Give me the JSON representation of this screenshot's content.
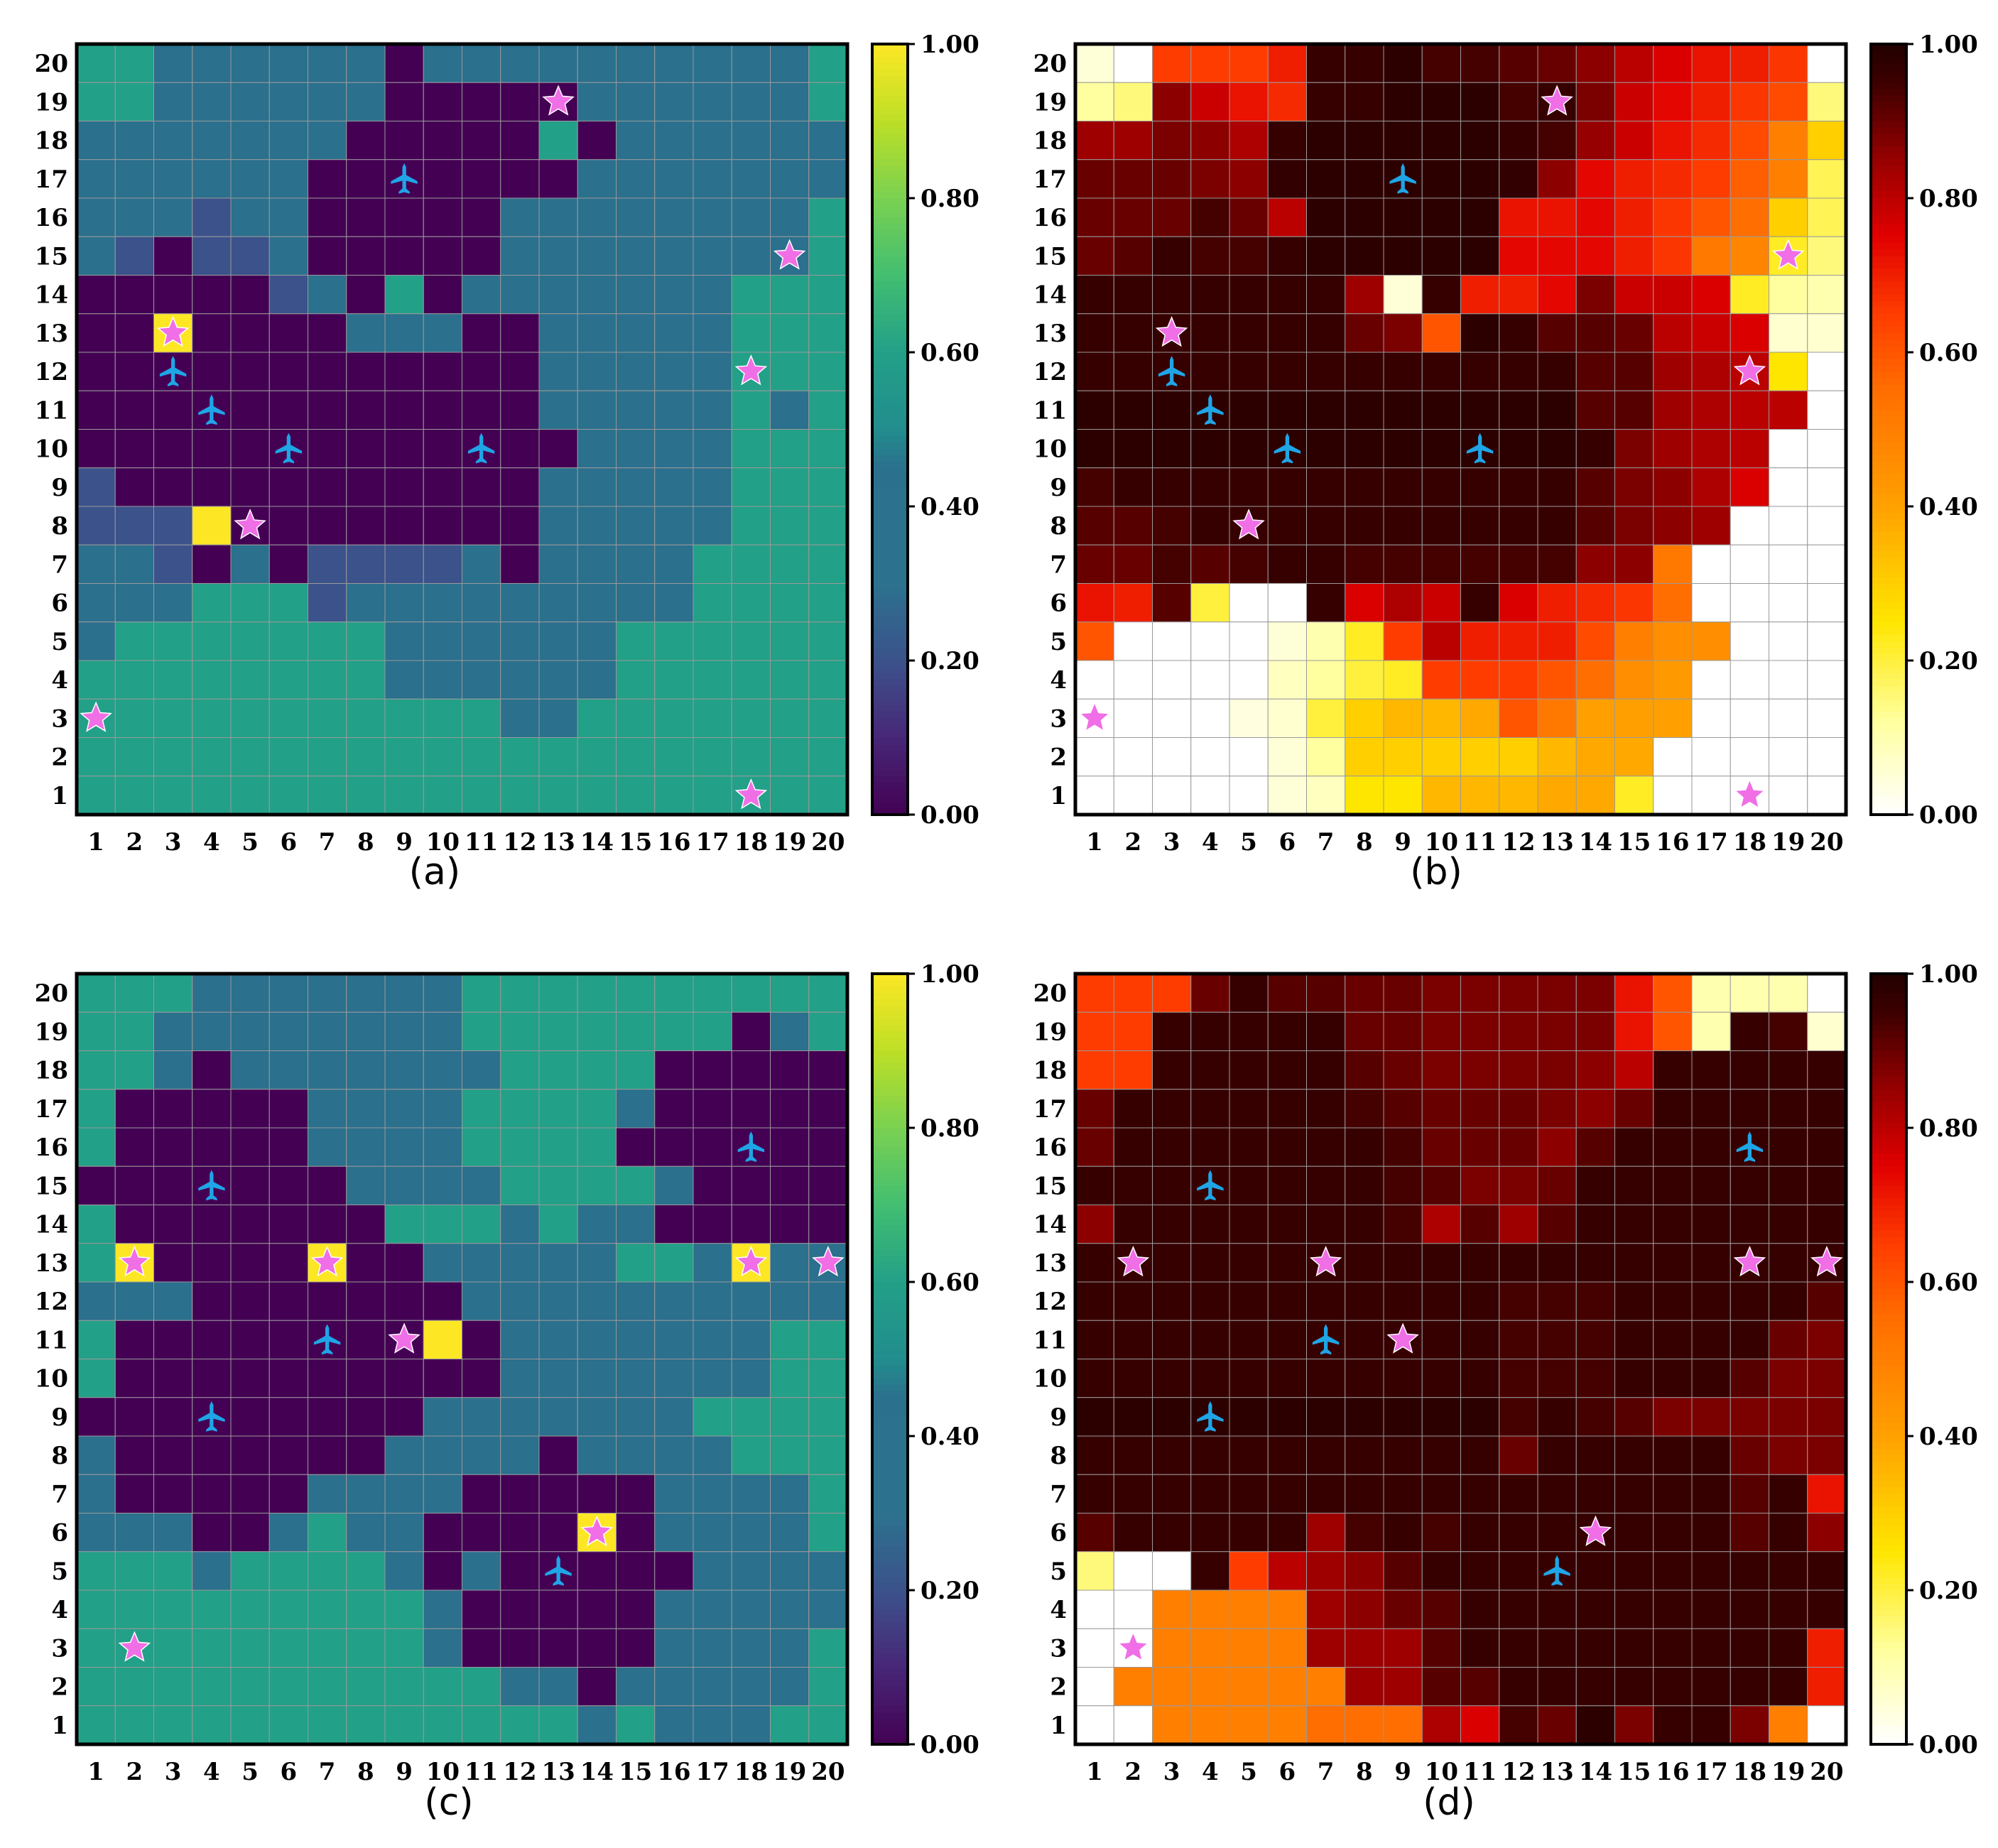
{
  "figure": {
    "colorbar_ticks": [
      "0.00",
      "0.20",
      "0.40",
      "0.60",
      "0.80",
      "1.00"
    ],
    "axis_ticks": [
      "1",
      "2",
      "3",
      "4",
      "5",
      "6",
      "7",
      "8",
      "9",
      "10",
      "11",
      "12",
      "13",
      "14",
      "15",
      "16",
      "17",
      "18",
      "19",
      "20"
    ],
    "colors": {
      "star": "#f06ee6",
      "drone": "#1fa5e6",
      "grid_line": "#9a9a9a"
    }
  },
  "chart_data": [
    {
      "panel": "a",
      "caption": "(a)",
      "type": "heatmap",
      "colormap": "viridis",
      "clim": [
        0,
        1
      ],
      "rows_top_to_bottom_y20_to_y1": [
        "66555555055555555556",
        "66555555000005555556",
        "55555550000060555555",
        "55555500000005555555",
        "55525500000555555556",
        "52022500000555555556",
        "00000250605555555666",
        "00Y00005550055555666",
        "00000000000055555666",
        "00000000000055555656",
        "00000000000005555666",
        "20000000000055555666",
        "222Y0000000055555666",
        "55205022225055556666",
        "55566625555555556666",
        "56666666555555666666",
        "66666666555555666666",
        "66666666666556666666",
        "66666666666666666666",
        "66666666666666666666"
      ],
      "legend_codes": {
        "0": 0.0,
        "2": 0.2,
        "5": 0.45,
        "6": 0.6,
        "Y": 1.0
      },
      "stars": [
        [
          13,
          19
        ],
        [
          19,
          15
        ],
        [
          3,
          13
        ],
        [
          18,
          12
        ],
        [
          5,
          8
        ],
        [
          1,
          3
        ],
        [
          18,
          1
        ]
      ],
      "drones": [
        [
          9,
          17
        ],
        [
          3,
          12
        ],
        [
          4,
          11
        ],
        [
          6,
          10
        ],
        [
          11,
          10
        ]
      ]
    },
    {
      "panel": "b",
      "caption": "(b)",
      "type": "heatmap",
      "colormap": "hot_r",
      "clim": [
        0,
        1
      ],
      "rows_top_to_bottom_y20_to_y1": [
        [
          0.05,
          0,
          0.65,
          0.65,
          0.65,
          0.7,
          0.96,
          0.96,
          0.98,
          0.94,
          0.94,
          0.92,
          0.9,
          0.86,
          0.8,
          0.76,
          0.72,
          0.7,
          0.66,
          0
        ],
        [
          0.12,
          0.15,
          0.86,
          0.78,
          0.72,
          0.68,
          0.96,
          0.96,
          0.98,
          0.98,
          0.98,
          0.94,
          0.96,
          0.88,
          0.78,
          0.74,
          0.7,
          0.66,
          0.62,
          0.15
        ],
        [
          0.84,
          0.84,
          0.88,
          0.86,
          0.82,
          0.96,
          0.98,
          0.98,
          0.98,
          0.98,
          0.98,
          0.96,
          0.94,
          0.85,
          0.78,
          0.72,
          0.68,
          0.62,
          0.5,
          0.3
        ],
        [
          0.9,
          0.9,
          0.9,
          0.88,
          0.86,
          0.97,
          0.98,
          0.98,
          0.98,
          0.98,
          0.98,
          0.97,
          0.86,
          0.74,
          0.7,
          0.68,
          0.65,
          0.58,
          0.5,
          0.18
        ],
        [
          0.9,
          0.9,
          0.9,
          0.94,
          0.9,
          0.8,
          0.98,
          0.98,
          0.98,
          0.98,
          0.98,
          0.72,
          0.72,
          0.74,
          0.7,
          0.66,
          0.6,
          0.55,
          0.3,
          0.18
        ],
        [
          0.9,
          0.92,
          0.96,
          0.94,
          0.94,
          0.96,
          0.98,
          0.98,
          0.98,
          0.98,
          0.98,
          0.74,
          0.74,
          0.74,
          0.7,
          0.66,
          0.52,
          0.48,
          0.22,
          0.15
        ],
        [
          0.96,
          0.96,
          0.96,
          0.96,
          0.96,
          0.96,
          0.96,
          0.84,
          0.05,
          0.96,
          0.7,
          0.7,
          0.74,
          0.88,
          0.78,
          0.78,
          0.76,
          0.22,
          0.12,
          0.1
        ],
        [
          0.96,
          0.96,
          0.96,
          0.96,
          0.96,
          0.96,
          0.96,
          0.9,
          0.88,
          0.6,
          0.98,
          0.96,
          0.92,
          0.92,
          0.9,
          0.8,
          0.78,
          0.76,
          0.06,
          0.06
        ],
        [
          0.96,
          0.96,
          0.96,
          0.96,
          0.96,
          0.96,
          0.96,
          0.96,
          0.96,
          0.96,
          0.96,
          0.96,
          0.96,
          0.92,
          0.92,
          0.84,
          0.82,
          0.8,
          0.25,
          0
        ],
        [
          0.98,
          0.98,
          0.98,
          0.98,
          0.98,
          0.98,
          0.98,
          0.98,
          0.98,
          0.98,
          0.98,
          0.98,
          0.98,
          0.92,
          0.92,
          0.84,
          0.82,
          0.8,
          0.8,
          0
        ],
        [
          0.98,
          0.98,
          0.98,
          0.98,
          0.98,
          0.98,
          0.98,
          0.98,
          0.98,
          0.98,
          0.98,
          0.98,
          0.98,
          0.96,
          0.88,
          0.84,
          0.82,
          0.8,
          0,
          0
        ],
        [
          0.94,
          0.96,
          0.96,
          0.96,
          0.96,
          0.96,
          0.96,
          0.96,
          0.96,
          0.96,
          0.96,
          0.96,
          0.96,
          0.92,
          0.88,
          0.86,
          0.82,
          0.76,
          0,
          0
        ],
        [
          0.92,
          0.92,
          0.94,
          0.96,
          0.96,
          0.96,
          0.96,
          0.96,
          0.96,
          0.96,
          0.96,
          0.96,
          0.96,
          0.92,
          0.88,
          0.86,
          0.84,
          0,
          0,
          0
        ],
        [
          0.9,
          0.9,
          0.94,
          0.92,
          0.94,
          0.96,
          0.96,
          0.94,
          0.94,
          0.94,
          0.94,
          0.94,
          0.94,
          0.86,
          0.86,
          0.52,
          0,
          0,
          0,
          0
        ],
        [
          0.72,
          0.7,
          0.92,
          0.2,
          0,
          0,
          0.96,
          0.76,
          0.82,
          0.78,
          0.96,
          0.76,
          0.7,
          0.68,
          0.66,
          0.55,
          0,
          0,
          0,
          0
        ],
        [
          0.6,
          0,
          0,
          0,
          0,
          0.05,
          0.1,
          0.22,
          0.65,
          0.8,
          0.7,
          0.7,
          0.7,
          0.62,
          0.5,
          0.45,
          0.45,
          0,
          0,
          0
        ],
        [
          0,
          0,
          0,
          0,
          0,
          0.08,
          0.12,
          0.2,
          0.22,
          0.65,
          0.65,
          0.65,
          0.6,
          0.55,
          0.45,
          0.42,
          0,
          0,
          0,
          0
        ],
        [
          0,
          0,
          0,
          0,
          0.04,
          0.06,
          0.2,
          0.3,
          0.35,
          0.35,
          0.38,
          0.6,
          0.52,
          0.4,
          0.4,
          0.4,
          0,
          0,
          0,
          0
        ],
        [
          0,
          0,
          0,
          0,
          0,
          0.05,
          0.12,
          0.3,
          0.3,
          0.3,
          0.3,
          0.3,
          0.35,
          0.38,
          0.38,
          0,
          0,
          0,
          0,
          0
        ],
        [
          0,
          0,
          0,
          0,
          0,
          0.05,
          0.08,
          0.25,
          0.25,
          0.35,
          0.35,
          0.35,
          0.38,
          0.38,
          0.22,
          0,
          0,
          0,
          0,
          0
        ]
      ],
      "stars": [
        [
          13,
          19
        ],
        [
          19,
          15
        ],
        [
          3,
          13
        ],
        [
          18,
          12
        ],
        [
          5,
          8
        ],
        [
          1,
          3
        ],
        [
          18,
          1
        ]
      ],
      "drones": [
        [
          9,
          17
        ],
        [
          3,
          12
        ],
        [
          4,
          11
        ],
        [
          6,
          10
        ],
        [
          11,
          10
        ]
      ]
    },
    {
      "panel": "c",
      "caption": "(c)",
      "type": "heatmap",
      "colormap": "viridis",
      "clim": [
        0,
        1
      ],
      "rows_top_to_bottom_y20_to_y1": [
        "66655555556666666666",
        "66555555556666666056",
        "66505555555666600000",
        "60000055556666500000",
        "60000055556666000000",
        "00000005555666650000",
        "60000000666565500000",
        "6Y0000Y0055555665Y55",
        "55500000005555555555",
        "600000000Y0555555566",
        "60000000000555555566",
        "00000000055555556666",
        "50000000555505555666",
        "50000055550000055556",
        "5550056550000Y055556",
        "66656666505000005555",
        "66666666650000055555",
        "66666666650000055556",
        "66666666666550555556",
        "66666666666665655566"
      ],
      "legend_codes": {
        "0": 0.0,
        "5": 0.45,
        "6": 0.6,
        "Y": 1.0
      },
      "stars": [
        [
          2,
          13
        ],
        [
          7,
          13
        ],
        [
          18,
          13
        ],
        [
          20,
          13
        ],
        [
          9,
          11
        ],
        [
          14,
          6
        ],
        [
          2,
          3
        ]
      ],
      "drones": [
        [
          18,
          16
        ],
        [
          4,
          15
        ],
        [
          7,
          11
        ],
        [
          4,
          9
        ],
        [
          13,
          5
        ]
      ]
    },
    {
      "panel": "d",
      "caption": "(d)",
      "type": "heatmap",
      "colormap": "hot_r",
      "clim": [
        0,
        1
      ],
      "rows_top_to_bottom_y20_to_y1": [
        [
          0.65,
          0.65,
          0.65,
          0.9,
          0.96,
          0.92,
          0.92,
          0.9,
          0.9,
          0.88,
          0.88,
          0.88,
          0.88,
          0.88,
          0.72,
          0.6,
          0.1,
          0.1,
          0.1,
          0
        ],
        [
          0.65,
          0.65,
          0.96,
          0.96,
          0.96,
          0.96,
          0.96,
          0.9,
          0.9,
          0.88,
          0.88,
          0.88,
          0.88,
          0.88,
          0.72,
          0.6,
          0.1,
          0.96,
          0.94,
          0.06
        ],
        [
          0.65,
          0.65,
          0.96,
          0.96,
          0.96,
          0.96,
          0.96,
          0.92,
          0.9,
          0.88,
          0.88,
          0.88,
          0.88,
          0.86,
          0.8,
          0.96,
          0.96,
          0.96,
          0.96,
          0.96
        ],
        [
          0.9,
          0.96,
          0.96,
          0.96,
          0.96,
          0.96,
          0.96,
          0.94,
          0.92,
          0.9,
          0.9,
          0.9,
          0.88,
          0.86,
          0.9,
          0.96,
          0.96,
          0.96,
          0.96,
          0.96
        ],
        [
          0.9,
          0.96,
          0.96,
          0.96,
          0.96,
          0.96,
          0.96,
          0.96,
          0.94,
          0.9,
          0.9,
          0.9,
          0.86,
          0.92,
          0.96,
          0.96,
          0.96,
          0.96,
          0.96,
          0.96
        ],
        [
          0.96,
          0.96,
          0.96,
          0.96,
          0.96,
          0.96,
          0.96,
          0.96,
          0.94,
          0.92,
          0.88,
          0.88,
          0.9,
          0.96,
          0.96,
          0.96,
          0.96,
          0.96,
          0.96,
          0.96
        ],
        [
          0.86,
          0.96,
          0.96,
          0.96,
          0.96,
          0.96,
          0.96,
          0.96,
          0.94,
          0.82,
          0.92,
          0.84,
          0.92,
          0.96,
          0.96,
          0.96,
          0.96,
          0.96,
          0.96,
          0.96
        ],
        [
          0.96,
          0.96,
          0.96,
          0.96,
          0.96,
          0.96,
          0.96,
          0.96,
          0.96,
          0.96,
          0.96,
          0.96,
          0.96,
          0.96,
          0.96,
          0.96,
          0.96,
          0.96,
          0.96,
          0.96
        ],
        [
          0.96,
          0.96,
          0.96,
          0.96,
          0.96,
          0.96,
          0.96,
          0.96,
          0.96,
          0.96,
          0.96,
          0.94,
          0.94,
          0.94,
          0.96,
          0.96,
          0.96,
          0.96,
          0.96,
          0.92
        ],
        [
          0.96,
          0.96,
          0.96,
          0.96,
          0.96,
          0.96,
          0.96,
          0.96,
          0.96,
          0.96,
          0.96,
          0.94,
          0.94,
          0.94,
          0.96,
          0.96,
          0.96,
          0.96,
          0.9,
          0.88
        ],
        [
          0.96,
          0.96,
          0.96,
          0.96,
          0.96,
          0.96,
          0.96,
          0.96,
          0.96,
          0.96,
          0.96,
          0.94,
          0.94,
          0.94,
          0.96,
          0.96,
          0.96,
          0.92,
          0.88,
          0.88
        ],
        [
          0.98,
          0.98,
          0.98,
          0.98,
          0.98,
          0.98,
          0.98,
          0.98,
          0.98,
          0.98,
          0.98,
          0.94,
          0.96,
          0.94,
          0.92,
          0.88,
          0.88,
          0.88,
          0.88,
          0.88
        ],
        [
          0.96,
          0.96,
          0.96,
          0.96,
          0.96,
          0.96,
          0.96,
          0.96,
          0.96,
          0.96,
          0.96,
          0.9,
          0.96,
          0.96,
          0.96,
          0.96,
          0.96,
          0.9,
          0.88,
          0.88
        ],
        [
          0.96,
          0.96,
          0.96,
          0.96,
          0.96,
          0.96,
          0.96,
          0.96,
          0.96,
          0.96,
          0.96,
          0.96,
          0.96,
          0.96,
          0.96,
          0.96,
          0.96,
          0.92,
          0.96,
          0.72
        ],
        [
          0.92,
          0.96,
          0.96,
          0.96,
          0.96,
          0.96,
          0.84,
          0.94,
          0.96,
          0.94,
          0.96,
          0.96,
          0.96,
          0.96,
          0.96,
          0.96,
          0.96,
          0.92,
          0.96,
          0.86
        ],
        [
          0.15,
          0,
          0,
          0.96,
          0.65,
          0.8,
          0.84,
          0.86,
          0.92,
          0.96,
          0.96,
          0.96,
          0.96,
          0.96,
          0.96,
          0.96,
          0.96,
          0.96,
          0.96,
          0.96
        ],
        [
          0,
          0,
          0.5,
          0.5,
          0.5,
          0.5,
          0.84,
          0.86,
          0.9,
          0.92,
          0.96,
          0.96,
          0.96,
          0.96,
          0.96,
          0.96,
          0.96,
          0.96,
          0.96,
          0.96
        ],
        [
          0,
          0,
          0.5,
          0.5,
          0.5,
          0.5,
          0.84,
          0.84,
          0.84,
          0.92,
          0.96,
          0.96,
          0.96,
          0.96,
          0.96,
          0.96,
          0.96,
          0.96,
          0.96,
          0.7
        ],
        [
          0,
          0.5,
          0.5,
          0.5,
          0.5,
          0.5,
          0.5,
          0.84,
          0.84,
          0.92,
          0.92,
          0.96,
          0.96,
          0.96,
          0.96,
          0.96,
          0.96,
          0.96,
          0.96,
          0.7
        ],
        [
          0,
          0,
          0.5,
          0.5,
          0.5,
          0.5,
          0.55,
          0.55,
          0.55,
          0.82,
          0.76,
          0.94,
          0.9,
          0.98,
          0.88,
          0.96,
          0.96,
          0.88,
          0.5,
          0
        ]
      ],
      "stars": [
        [
          2,
          13
        ],
        [
          7,
          13
        ],
        [
          18,
          13
        ],
        [
          20,
          13
        ],
        [
          9,
          11
        ],
        [
          14,
          6
        ],
        [
          2,
          3
        ]
      ],
      "drones": [
        [
          18,
          16
        ],
        [
          4,
          15
        ],
        [
          7,
          11
        ],
        [
          4,
          9
        ],
        [
          13,
          5
        ]
      ]
    }
  ]
}
